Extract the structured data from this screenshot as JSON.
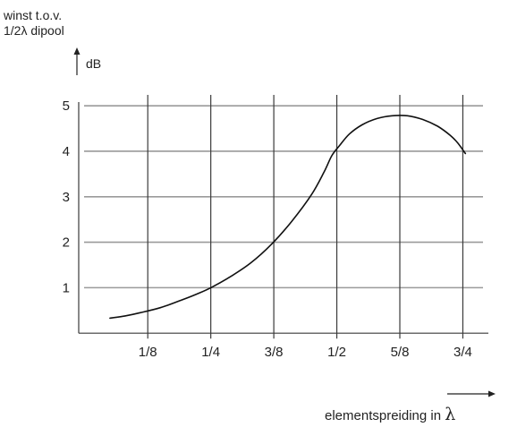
{
  "chart_data": {
    "type": "line",
    "title": "",
    "ylabel_lines": [
      "winst t.o.v.",
      "1/2λ dipool"
    ],
    "yunit": "dB",
    "xlabel": "elementspreiding in",
    "xunit_symbol": "λ",
    "x_ticks": [
      "1/8",
      "1/4",
      "3/8",
      "1/2",
      "5/8",
      "3/4"
    ],
    "x_tick_values": [
      0.125,
      0.25,
      0.375,
      0.5,
      0.625,
      0.75
    ],
    "y_ticks": [
      "1",
      "2",
      "3",
      "4",
      "5"
    ],
    "y_tick_values": [
      1,
      2,
      3,
      4,
      5
    ],
    "xlim": [
      -0.012,
      0.79
    ],
    "ylim": [
      -1,
      5.2
    ],
    "grid": true,
    "series": [
      {
        "color": "#111111",
        "x": [
          0.05,
          0.08,
          0.11,
          0.15,
          0.19,
          0.22,
          0.25,
          0.29,
          0.33,
          0.37,
          0.41,
          0.45,
          0.475,
          0.49,
          0.505,
          0.525,
          0.55,
          0.58,
          0.61,
          0.64,
          0.67,
          0.7,
          0.725,
          0.74,
          0.755
        ],
        "y": [
          0.33,
          0.38,
          0.45,
          0.56,
          0.72,
          0.85,
          1.0,
          1.25,
          1.55,
          1.95,
          2.45,
          3.05,
          3.55,
          3.9,
          4.12,
          4.38,
          4.58,
          4.72,
          4.78,
          4.78,
          4.7,
          4.55,
          4.35,
          4.18,
          3.95
        ]
      }
    ]
  }
}
